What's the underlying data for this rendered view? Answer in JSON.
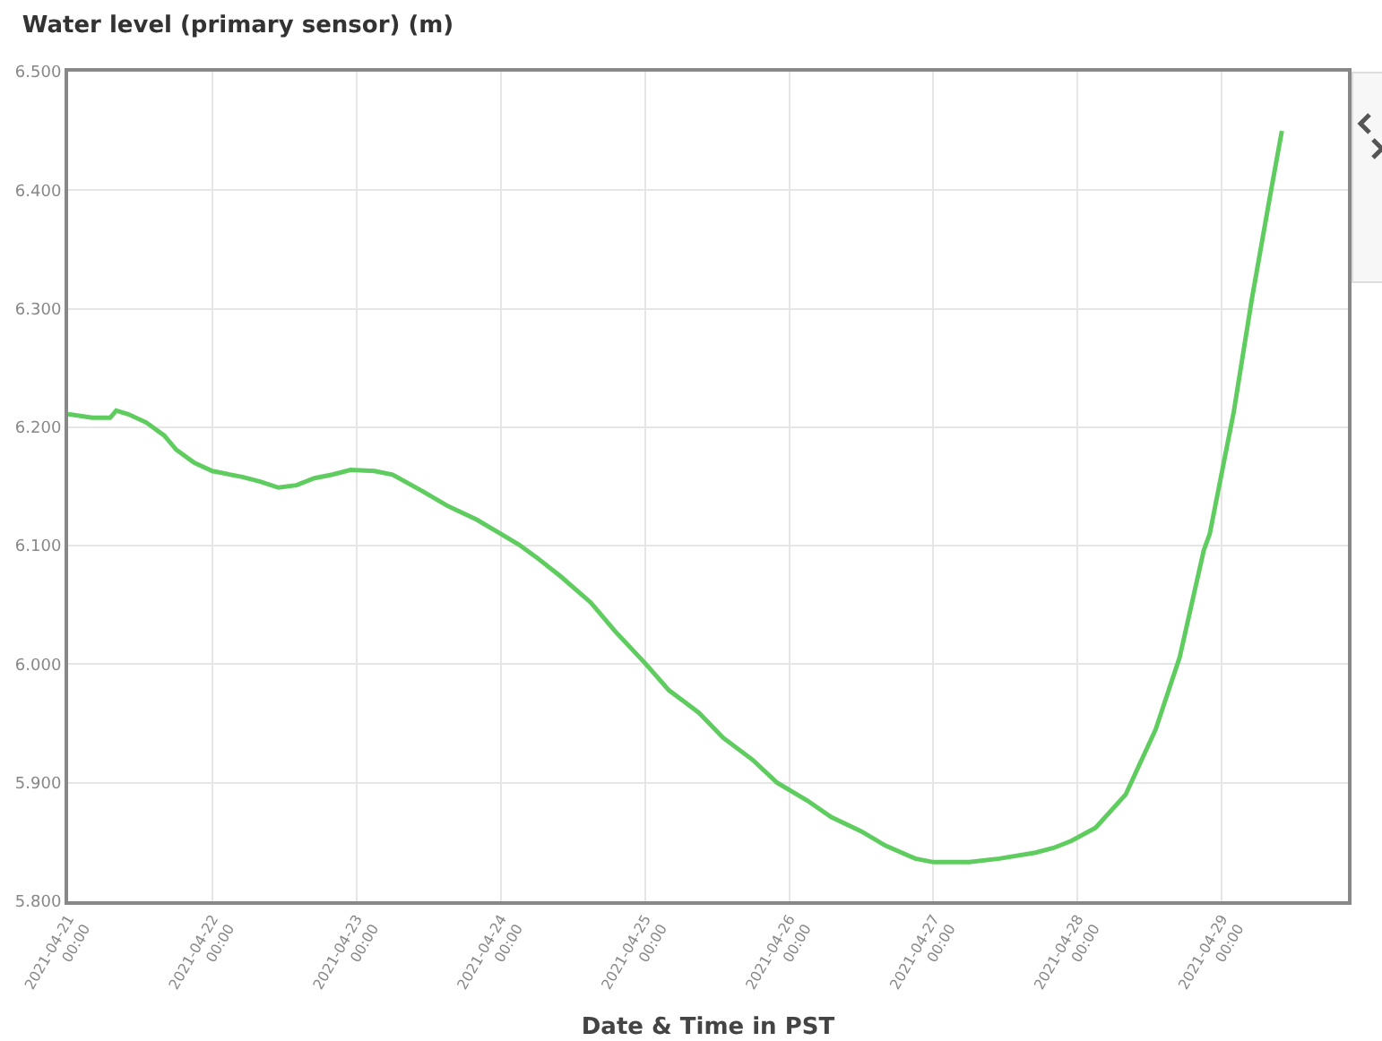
{
  "chart_data": {
    "type": "line",
    "title": "Water level (primary sensor) (m)",
    "xlabel": "Date & Time in PST",
    "x": [
      "2021-04-21T00:00",
      "2021-04-21T04:00",
      "2021-04-21T07:00",
      "2021-04-21T08:00",
      "2021-04-21T10:00",
      "2021-04-21T13:00",
      "2021-04-21T16:00",
      "2021-04-21T18:00",
      "2021-04-21T21:00",
      "2021-04-22T00:00",
      "2021-04-22T05:00",
      "2021-04-22T08:00",
      "2021-04-22T11:00",
      "2021-04-22T14:00",
      "2021-04-22T17:00",
      "2021-04-22T20:00",
      "2021-04-22T23:00",
      "2021-04-23T03:00",
      "2021-04-23T06:00",
      "2021-04-23T11:00",
      "2021-04-23T15:00",
      "2021-04-23T20:00",
      "2021-04-24T00:00",
      "2021-04-24T03:00",
      "2021-04-24T06:00",
      "2021-04-24T10:00",
      "2021-04-24T15:00",
      "2021-04-24T19:00",
      "2021-04-25T00:00",
      "2021-04-25T04:00",
      "2021-04-25T09:00",
      "2021-04-25T13:00",
      "2021-04-25T18:00",
      "2021-04-25T22:00",
      "2021-04-26T03:00",
      "2021-04-26T07:00",
      "2021-04-26T12:00",
      "2021-04-26T16:00",
      "2021-04-26T21:00",
      "2021-04-27T00:00",
      "2021-04-27T06:00",
      "2021-04-27T11:00",
      "2021-04-27T17:00",
      "2021-04-27T20:00",
      "2021-04-27T23:00",
      "2021-04-28T03:00",
      "2021-04-28T08:00",
      "2021-04-28T13:00",
      "2021-04-28T17:00",
      "2021-04-28T21:00",
      "2021-04-28T22:00",
      "2021-04-29T02:00",
      "2021-04-29T05:00",
      "2021-04-29T08:00",
      "2021-04-29T10:00"
    ],
    "series": [
      {
        "color": "#5fcc5f",
        "values": [
          6.211,
          6.208,
          6.208,
          6.214,
          6.211,
          6.204,
          6.193,
          6.181,
          6.17,
          6.163,
          6.158,
          6.154,
          6.149,
          6.151,
          6.157,
          6.16,
          6.164,
          6.163,
          6.16,
          6.146,
          6.134,
          6.122,
          6.11,
          6.101,
          6.09,
          6.074,
          6.052,
          6.028,
          6.001,
          5.978,
          5.959,
          5.938,
          5.919,
          5.9,
          5.885,
          5.871,
          5.859,
          5.847,
          5.836,
          5.833,
          5.833,
          5.836,
          5.841,
          5.845,
          5.851,
          5.862,
          5.89,
          5.945,
          6.006,
          6.096,
          6.11,
          6.213,
          6.308,
          6.394,
          6.45
        ]
      }
    ],
    "xlim": [
      "2021-04-21T00:00",
      "2021-04-29T21:00"
    ],
    "xticks": [
      {
        "value": "2021-04-21",
        "label": "2021-04-21\n00:00"
      },
      {
        "value": "2021-04-22",
        "label": "2021-04-22\n00:00"
      },
      {
        "value": "2021-04-23",
        "label": "2021-04-23\n00:00"
      },
      {
        "value": "2021-04-24",
        "label": "2021-04-24\n00:00"
      },
      {
        "value": "2021-04-25",
        "label": "2021-04-25\n00:00"
      },
      {
        "value": "2021-04-26",
        "label": "2021-04-26\n00:00"
      },
      {
        "value": "2021-04-27",
        "label": "2021-04-27\n00:00"
      },
      {
        "value": "2021-04-28",
        "label": "2021-04-28\n00:00"
      },
      {
        "value": "2021-04-29",
        "label": "2021-04-29\n00:00"
      }
    ],
    "ylim": [
      5.8,
      6.5
    ],
    "yticks": [
      {
        "value": 5.8,
        "label": "5.800"
      },
      {
        "value": 5.9,
        "label": "5.900"
      },
      {
        "value": 6.0,
        "label": "6.000"
      },
      {
        "value": 6.1,
        "label": "6.100"
      },
      {
        "value": 6.2,
        "label": "6.200"
      },
      {
        "value": 6.3,
        "label": "6.300"
      },
      {
        "value": 6.4,
        "label": "6.400"
      },
      {
        "value": 6.5,
        "label": "6.500"
      }
    ],
    "grid": true
  }
}
